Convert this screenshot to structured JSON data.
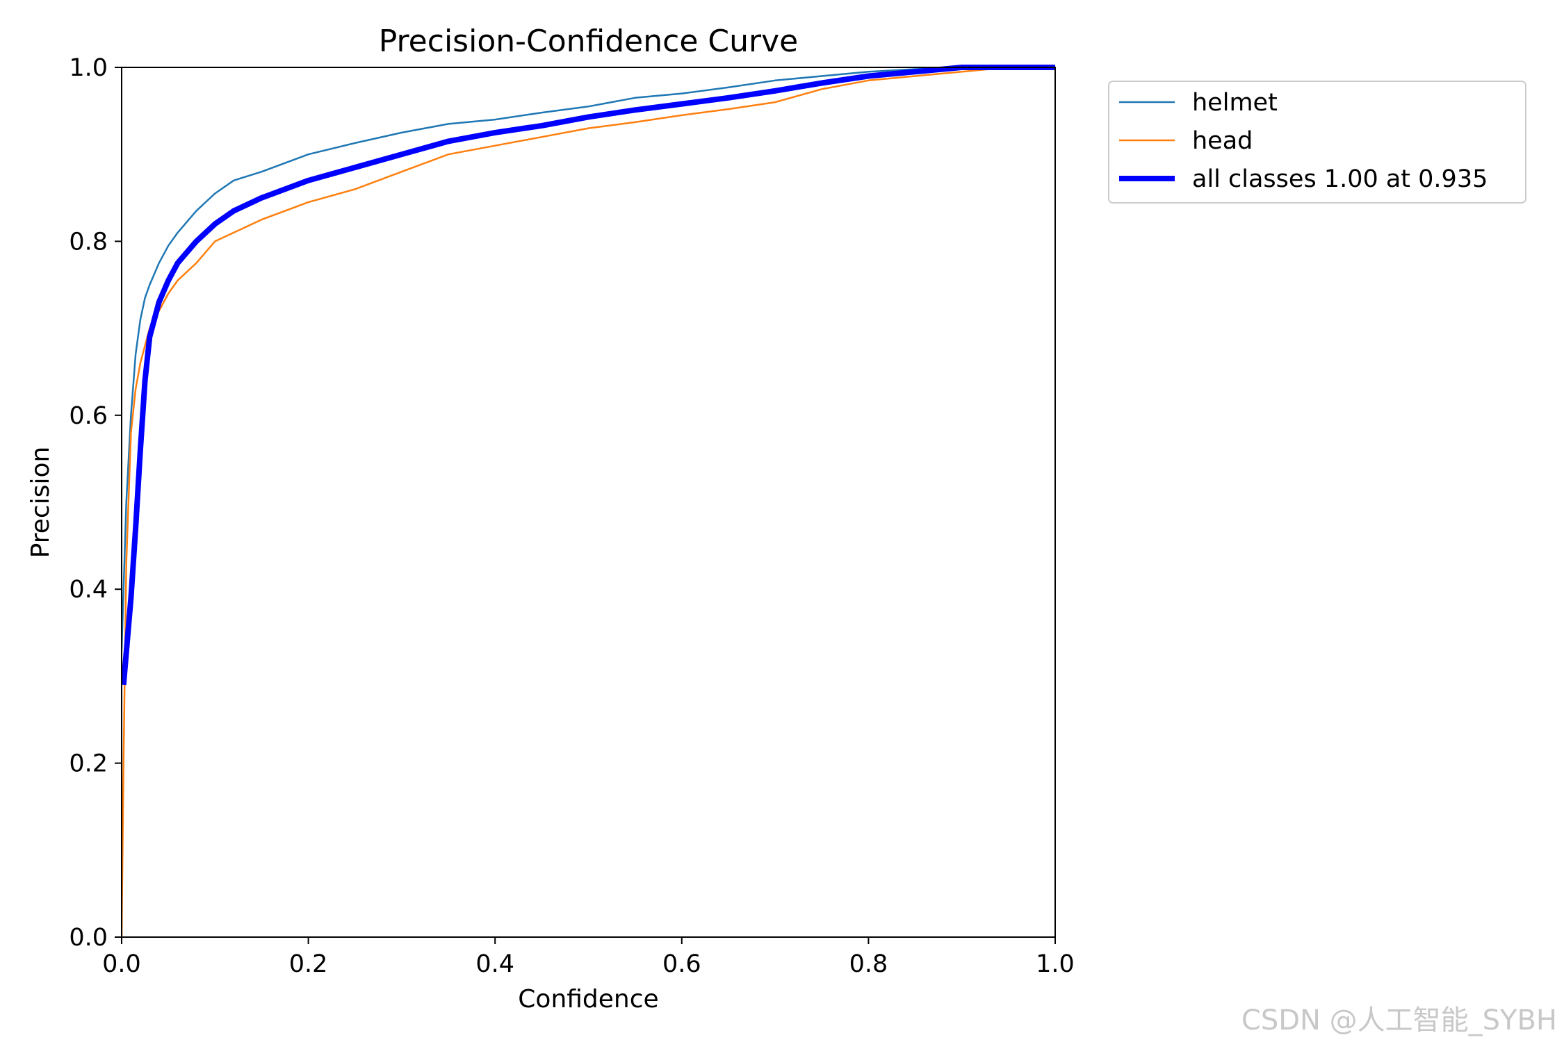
{
  "chart_data": {
    "type": "line",
    "title": "Precision-Confidence Curve",
    "xlabel": "Confidence",
    "ylabel": "Precision",
    "xlim": [
      0,
      1
    ],
    "ylim": [
      0,
      1
    ],
    "xticks": [
      0.0,
      0.2,
      0.4,
      0.6,
      0.8,
      1.0
    ],
    "yticks": [
      0.0,
      0.2,
      0.4,
      0.6,
      0.8,
      1.0
    ],
    "xtick_labels": [
      "0.0",
      "0.2",
      "0.4",
      "0.6",
      "0.8",
      "1.0"
    ],
    "ytick_labels": [
      "0.0",
      "0.2",
      "0.4",
      "0.6",
      "0.8",
      "1.0"
    ],
    "grid": false,
    "legend_position": "outside-top-right",
    "series": [
      {
        "name": "helmet",
        "color": "#1f77b4",
        "x": [
          0.0,
          0.005,
          0.01,
          0.015,
          0.02,
          0.025,
          0.03,
          0.04,
          0.05,
          0.06,
          0.08,
          0.1,
          0.12,
          0.15,
          0.2,
          0.25,
          0.3,
          0.35,
          0.4,
          0.45,
          0.5,
          0.55,
          0.6,
          0.65,
          0.7,
          0.75,
          0.8,
          0.85,
          0.9,
          0.95,
          1.0
        ],
        "y": [
          0.33,
          0.5,
          0.6,
          0.67,
          0.71,
          0.735,
          0.75,
          0.775,
          0.795,
          0.81,
          0.835,
          0.855,
          0.87,
          0.88,
          0.9,
          0.913,
          0.925,
          0.935,
          0.94,
          0.948,
          0.955,
          0.965,
          0.97,
          0.977,
          0.985,
          0.99,
          0.995,
          0.998,
          1.0,
          1.0,
          1.0
        ]
      },
      {
        "name": "head",
        "color": "#ff7f0e",
        "x": [
          0.0,
          0.002,
          0.005,
          0.01,
          0.015,
          0.02,
          0.025,
          0.03,
          0.04,
          0.05,
          0.06,
          0.08,
          0.1,
          0.12,
          0.15,
          0.2,
          0.25,
          0.3,
          0.35,
          0.4,
          0.45,
          0.5,
          0.55,
          0.6,
          0.65,
          0.7,
          0.75,
          0.8,
          0.85,
          0.9,
          0.95,
          1.0
        ],
        "y": [
          0.0,
          0.2,
          0.43,
          0.58,
          0.63,
          0.66,
          0.68,
          0.7,
          0.72,
          0.74,
          0.755,
          0.775,
          0.8,
          0.81,
          0.825,
          0.845,
          0.86,
          0.88,
          0.9,
          0.91,
          0.92,
          0.93,
          0.937,
          0.945,
          0.952,
          0.96,
          0.975,
          0.985,
          0.99,
          0.995,
          1.0,
          1.0
        ]
      },
      {
        "name": "all classes 1.00 at 0.935",
        "color": "#0000ff",
        "x": [
          0.002,
          0.01,
          0.015,
          0.02,
          0.025,
          0.03,
          0.035,
          0.04,
          0.05,
          0.06,
          0.08,
          0.1,
          0.12,
          0.15,
          0.2,
          0.25,
          0.3,
          0.35,
          0.4,
          0.45,
          0.5,
          0.55,
          0.6,
          0.65,
          0.7,
          0.75,
          0.8,
          0.85,
          0.9,
          0.95,
          1.0
        ],
        "y": [
          0.29,
          0.39,
          0.47,
          0.56,
          0.64,
          0.69,
          0.71,
          0.73,
          0.755,
          0.775,
          0.8,
          0.82,
          0.835,
          0.85,
          0.87,
          0.885,
          0.9,
          0.915,
          0.925,
          0.933,
          0.943,
          0.951,
          0.958,
          0.965,
          0.973,
          0.982,
          0.99,
          0.995,
          1.0,
          1.0,
          1.0
        ]
      }
    ]
  },
  "watermark": "CSDN @人工智能_SYBH"
}
